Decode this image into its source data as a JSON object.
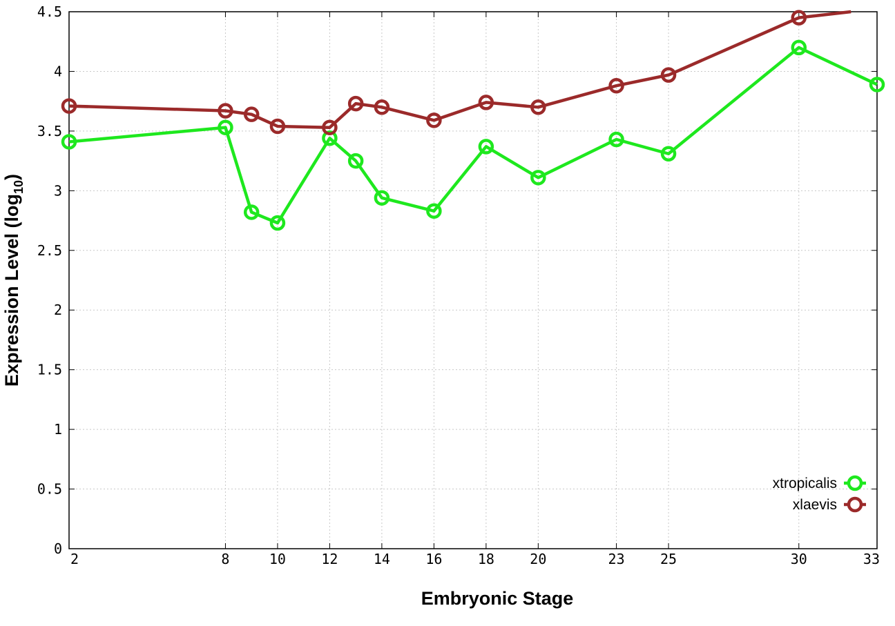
{
  "chart_data": {
    "type": "line",
    "title": "",
    "xlabel": "Embryonic Stage",
    "ylabel_main": "Expression Level (log",
    "ylabel_sub": "10",
    "ylabel_end": ")",
    "x_ticks": [
      "2",
      "8",
      "10",
      "12",
      "14",
      "16",
      "18",
      "20",
      "23",
      "25",
      "30",
      "33"
    ],
    "y_ticks": [
      "0",
      "0.5",
      "1",
      "1.5",
      "2",
      "2.5",
      "3",
      "3.5",
      "4",
      "4.5"
    ],
    "ylim": [
      0,
      4.5
    ],
    "grid": true,
    "legend_position": "bottom-right",
    "series": [
      {
        "name": "xtropicalis",
        "color": "#1ee81e",
        "x": [
          2,
          8,
          9,
          10,
          12,
          13,
          14,
          16,
          18,
          20,
          23,
          25,
          30,
          33
        ],
        "values": [
          3.41,
          3.53,
          2.82,
          2.73,
          3.44,
          3.25,
          2.94,
          2.83,
          3.37,
          3.11,
          3.43,
          3.31,
          4.2,
          3.89
        ]
      },
      {
        "name": "xlaevis",
        "color": "#9b2a2a",
        "x": [
          2,
          8,
          9,
          10,
          12,
          13,
          14,
          16,
          18,
          20,
          23,
          25,
          30,
          32
        ],
        "values": [
          3.71,
          3.67,
          3.64,
          3.54,
          3.53,
          3.73,
          3.7,
          3.59,
          3.74,
          3.7,
          3.88,
          3.97,
          4.45,
          4.5
        ]
      }
    ]
  }
}
